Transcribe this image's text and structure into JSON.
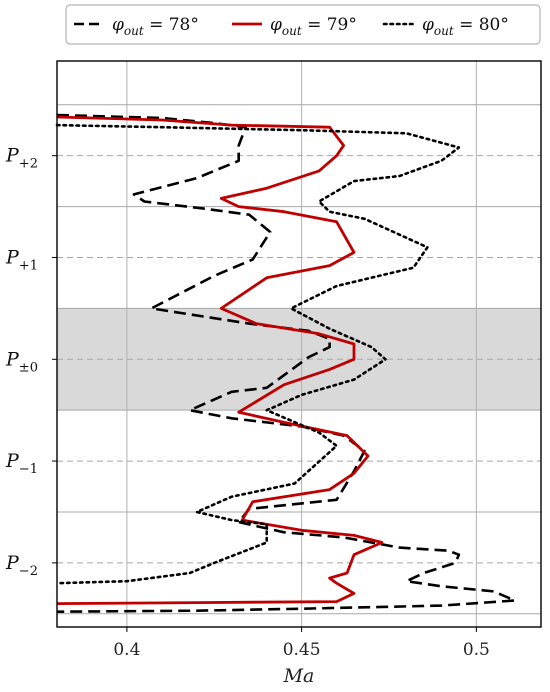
{
  "chart_data": {
    "type": "line",
    "xlabel": "Ma",
    "xlim": [
      0.38,
      0.5185
    ],
    "x_ticks": [
      "0.4",
      "0.45",
      "0.5"
    ],
    "x_tick_values": [
      0.4,
      0.45,
      0.5
    ],
    "y_ticks": [
      {
        "base": "P",
        "sub": "+2",
        "position": 2
      },
      {
        "base": "P",
        "sub": "+1",
        "position": 1
      },
      {
        "base": "P",
        "sub": "±0",
        "position": 0
      },
      {
        "base": "P",
        "sub": "−1",
        "position": -1
      },
      {
        "base": "P",
        "sub": "−2",
        "position": -2
      }
    ],
    "ylim": [
      -2.63,
      2.93
    ],
    "grid": true,
    "shaded_band": {
      "from": -0.5,
      "to": 0.5,
      "color": "#d9d9d9"
    },
    "legend": {
      "placement": "top",
      "entries": [
        {
          "prefix": "φ",
          "sub": "out",
          "value": " = 78°"
        },
        {
          "prefix": "φ",
          "sub": "out",
          "value": " = 79°"
        },
        {
          "prefix": "φ",
          "sub": "out",
          "value": " = 80°"
        }
      ]
    },
    "series": [
      {
        "name": "φout = 78°",
        "style": "dashed",
        "color": "#000000",
        "points": [
          [
            0.38,
            2.4
          ],
          [
            0.41,
            2.37
          ],
          [
            0.425,
            2.32
          ],
          [
            0.434,
            2.28
          ],
          [
            0.432,
            2.1
          ],
          [
            0.432,
            1.95
          ],
          [
            0.42,
            1.78
          ],
          [
            0.402,
            1.62
          ],
          [
            0.405,
            1.55
          ],
          [
            0.422,
            1.48
          ],
          [
            0.435,
            1.42
          ],
          [
            0.441,
            1.25
          ],
          [
            0.436,
            0.98
          ],
          [
            0.425,
            0.82
          ],
          [
            0.407,
            0.5
          ],
          [
            0.435,
            0.35
          ],
          [
            0.452,
            0.28
          ],
          [
            0.458,
            0.2
          ],
          [
            0.458,
            0.12
          ],
          [
            0.452,
            0.02
          ],
          [
            0.44,
            -0.28
          ],
          [
            0.43,
            -0.32
          ],
          [
            0.418,
            -0.5
          ],
          [
            0.43,
            -0.58
          ],
          [
            0.45,
            -0.66
          ],
          [
            0.462,
            -0.75
          ],
          [
            0.468,
            -0.9
          ],
          [
            0.465,
            -1.1
          ],
          [
            0.46,
            -1.38
          ],
          [
            0.435,
            -1.47
          ],
          [
            0.432,
            -1.6
          ],
          [
            0.445,
            -1.7
          ],
          [
            0.462,
            -1.75
          ],
          [
            0.47,
            -1.8
          ],
          [
            0.478,
            -1.85
          ],
          [
            0.492,
            -1.88
          ],
          [
            0.495,
            -1.92
          ],
          [
            0.494,
            -2.0
          ],
          [
            0.485,
            -2.1
          ],
          [
            0.48,
            -2.18
          ],
          [
            0.49,
            -2.23
          ],
          [
            0.505,
            -2.28
          ],
          [
            0.511,
            -2.37
          ],
          [
            0.49,
            -2.42
          ],
          [
            0.45,
            -2.45
          ],
          [
            0.42,
            -2.47
          ],
          [
            0.38,
            -2.48
          ]
        ]
      },
      {
        "name": "φout = 79°",
        "style": "solid",
        "color": "#c00000",
        "points": [
          [
            0.38,
            2.38
          ],
          [
            0.41,
            2.35
          ],
          [
            0.43,
            2.3
          ],
          [
            0.458,
            2.28
          ],
          [
            0.462,
            2.1
          ],
          [
            0.46,
            2.0
          ],
          [
            0.455,
            1.85
          ],
          [
            0.44,
            1.68
          ],
          [
            0.427,
            1.58
          ],
          [
            0.432,
            1.5
          ],
          [
            0.445,
            1.45
          ],
          [
            0.46,
            1.35
          ],
          [
            0.465,
            1.05
          ],
          [
            0.458,
            0.92
          ],
          [
            0.44,
            0.8
          ],
          [
            0.427,
            0.5
          ],
          [
            0.437,
            0.35
          ],
          [
            0.455,
            0.25
          ],
          [
            0.465,
            0.15
          ],
          [
            0.465,
            0.0
          ],
          [
            0.458,
            -0.1
          ],
          [
            0.445,
            -0.25
          ],
          [
            0.432,
            -0.52
          ],
          [
            0.445,
            -0.62
          ],
          [
            0.463,
            -0.75
          ],
          [
            0.469,
            -0.95
          ],
          [
            0.465,
            -1.12
          ],
          [
            0.458,
            -1.28
          ],
          [
            0.436,
            -1.4
          ],
          [
            0.433,
            -1.58
          ],
          [
            0.45,
            -1.68
          ],
          [
            0.465,
            -1.73
          ],
          [
            0.473,
            -1.8
          ],
          [
            0.465,
            -1.92
          ],
          [
            0.463,
            -2.1
          ],
          [
            0.458,
            -2.15
          ],
          [
            0.46,
            -2.2
          ],
          [
            0.465,
            -2.3
          ],
          [
            0.46,
            -2.38
          ],
          [
            0.42,
            -2.39
          ],
          [
            0.38,
            -2.4
          ]
        ]
      },
      {
        "name": "φout = 80°",
        "style": "dotted",
        "color": "#000000",
        "points": [
          [
            0.38,
            2.3
          ],
          [
            0.41,
            2.28
          ],
          [
            0.45,
            2.25
          ],
          [
            0.48,
            2.22
          ],
          [
            0.495,
            2.08
          ],
          [
            0.49,
            1.95
          ],
          [
            0.478,
            1.8
          ],
          [
            0.465,
            1.75
          ],
          [
            0.455,
            1.55
          ],
          [
            0.458,
            1.45
          ],
          [
            0.468,
            1.38
          ],
          [
            0.486,
            1.1
          ],
          [
            0.482,
            0.9
          ],
          [
            0.46,
            0.72
          ],
          [
            0.447,
            0.5
          ],
          [
            0.458,
            0.3
          ],
          [
            0.47,
            0.12
          ],
          [
            0.474,
            0.0
          ],
          [
            0.465,
            -0.2
          ],
          [
            0.45,
            -0.35
          ],
          [
            0.44,
            -0.5
          ],
          [
            0.455,
            -0.72
          ],
          [
            0.46,
            -0.85
          ],
          [
            0.448,
            -1.22
          ],
          [
            0.43,
            -1.35
          ],
          [
            0.42,
            -1.5
          ],
          [
            0.43,
            -1.58
          ],
          [
            0.44,
            -1.62
          ],
          [
            0.44,
            -1.8
          ],
          [
            0.425,
            -2.0
          ],
          [
            0.418,
            -2.1
          ],
          [
            0.4,
            -2.18
          ],
          [
            0.38,
            -2.2
          ]
        ]
      }
    ]
  }
}
